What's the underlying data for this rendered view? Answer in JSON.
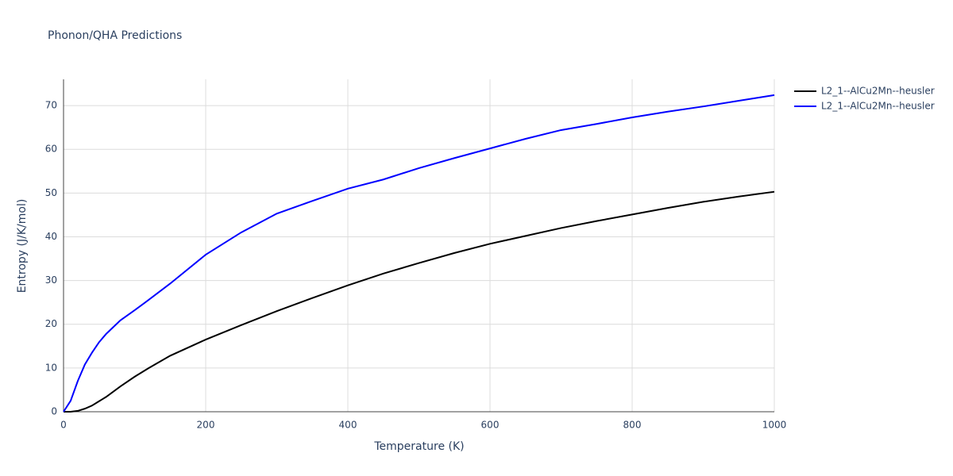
{
  "chart_data": {
    "type": "line",
    "title": "Phonon/QHA Predictions",
    "x_label": "Temperature (K)",
    "y_label": "Entropy (J/K/mol)",
    "x": [
      0,
      10,
      20,
      30,
      40,
      50,
      60,
      80,
      100,
      120,
      150,
      200,
      250,
      300,
      350,
      400,
      450,
      500,
      550,
      600,
      650,
      700,
      750,
      800,
      850,
      900,
      950,
      1000
    ],
    "series": [
      {
        "name": "L2_1--AlCu2Mn--heusler",
        "color": "#000000",
        "values": [
          0,
          0,
          0.2,
          0.7,
          1.4,
          2.4,
          3.4,
          5.8,
          8.0,
          10.0,
          12.8,
          16.5,
          19.8,
          23.0,
          26.0,
          28.9,
          31.6,
          34.0,
          36.3,
          38.4,
          40.2,
          42.0,
          43.6,
          45.1,
          46.6,
          48.0,
          49.2,
          50.3
        ]
      },
      {
        "name": "L2_1--AlCu2Mn--heusler",
        "color": "#0000ff",
        "values": [
          0,
          2.5,
          7.0,
          10.8,
          13.5,
          15.9,
          17.8,
          20.9,
          23.2,
          25.6,
          29.3,
          35.9,
          41.0,
          45.3,
          48.2,
          51.0,
          53.1,
          55.7,
          58.0,
          60.2,
          62.4,
          64.4,
          65.8,
          67.3,
          68.6,
          69.8,
          71.1,
          72.4
        ]
      }
    ],
    "xlim": [
      0,
      1000
    ],
    "xticks": [
      0,
      200,
      400,
      600,
      800,
      1000
    ],
    "ylim": [
      0,
      76
    ],
    "yticks": [
      0,
      10,
      20,
      30,
      40,
      50,
      60,
      70
    ],
    "grid": true,
    "legend": "right"
  }
}
